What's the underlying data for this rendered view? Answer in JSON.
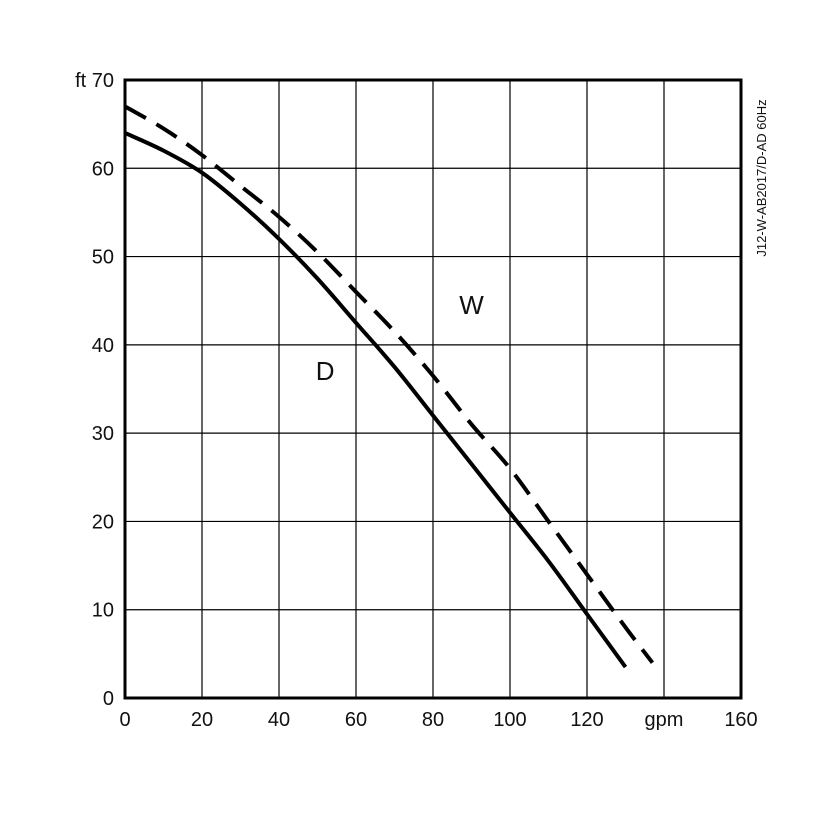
{
  "chart_data": {
    "type": "line",
    "x_unit_label": "gpm",
    "y_unit_label": "ft",
    "xlim": [
      0,
      160
    ],
    "ylim": [
      0,
      70
    ],
    "x_ticks": [
      "0",
      "20",
      "40",
      "60",
      "80",
      "100",
      "120",
      "",
      "160"
    ],
    "y_ticks": [
      "0",
      "10",
      "20",
      "30",
      "40",
      "50",
      "60",
      "ft 70"
    ],
    "grid": true,
    "series": [
      {
        "name": "D",
        "style": "solid",
        "color": "#000000",
        "x": [
          0,
          10,
          20,
          30,
          40,
          50,
          60,
          70,
          80,
          90,
          100,
          110,
          120,
          130
        ],
        "y": [
          64,
          62,
          59.5,
          56,
          52,
          47.5,
          42.5,
          37.5,
          32,
          26.5,
          21,
          15.5,
          9.5,
          3.5
        ]
      },
      {
        "name": "W",
        "style": "dashed",
        "color": "#000000",
        "x": [
          0,
          10,
          20,
          30,
          40,
          50,
          60,
          70,
          80,
          90,
          100,
          110,
          120,
          130,
          137
        ],
        "y": [
          67,
          64.5,
          61.5,
          58,
          54.5,
          50.5,
          46,
          41.5,
          36.5,
          31,
          26,
          20,
          14,
          8,
          4
        ]
      }
    ],
    "curve_labels": [
      {
        "text": "D",
        "x": 52,
        "y": 36
      },
      {
        "text": "W",
        "x": 90,
        "y": 43.5
      }
    ],
    "side_code": "J12-W-AB2017/D-AD 60Hz"
  }
}
